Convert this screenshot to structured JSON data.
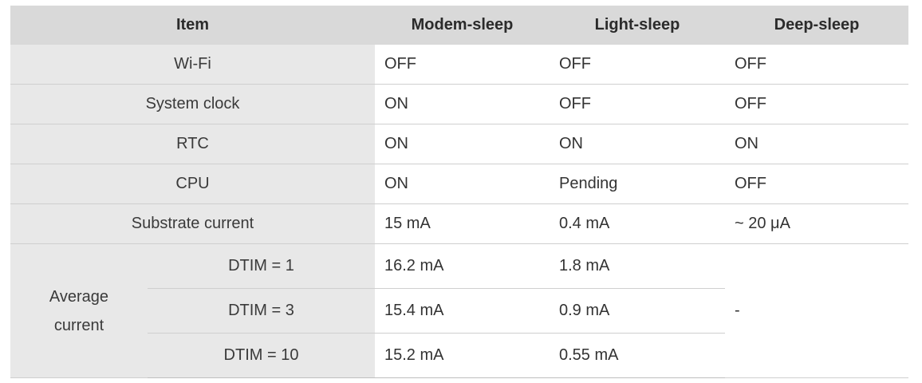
{
  "table": {
    "headers": [
      "Item",
      "Modem-sleep",
      "Light-sleep",
      "Deep-sleep"
    ],
    "rows": [
      {
        "item": "Wi-Fi",
        "modem": "OFF",
        "light": "OFF",
        "deep": "OFF"
      },
      {
        "item": "System clock",
        "modem": "ON",
        "light": "OFF",
        "deep": "OFF"
      },
      {
        "item": "RTC",
        "modem": "ON",
        "light": "ON",
        "deep": "ON"
      },
      {
        "item": "CPU",
        "modem": "ON",
        "light": "Pending",
        "deep": "OFF"
      },
      {
        "item": "Substrate current",
        "modem": "15 mA",
        "light": "0.4 mA",
        "deep": "~ 20 μA"
      }
    ],
    "average": {
      "label_line1": "Average",
      "label_line2": "current",
      "deep": "-",
      "rows": [
        {
          "dtim": "DTIM = 1",
          "modem": "16.2 mA",
          "light": "1.8 mA"
        },
        {
          "dtim": "DTIM = 3",
          "modem": "15.4 mA",
          "light": "0.9 mA"
        },
        {
          "dtim": "DTIM = 10",
          "modem": "15.2 mA",
          "light": "0.55 mA"
        }
      ]
    }
  }
}
